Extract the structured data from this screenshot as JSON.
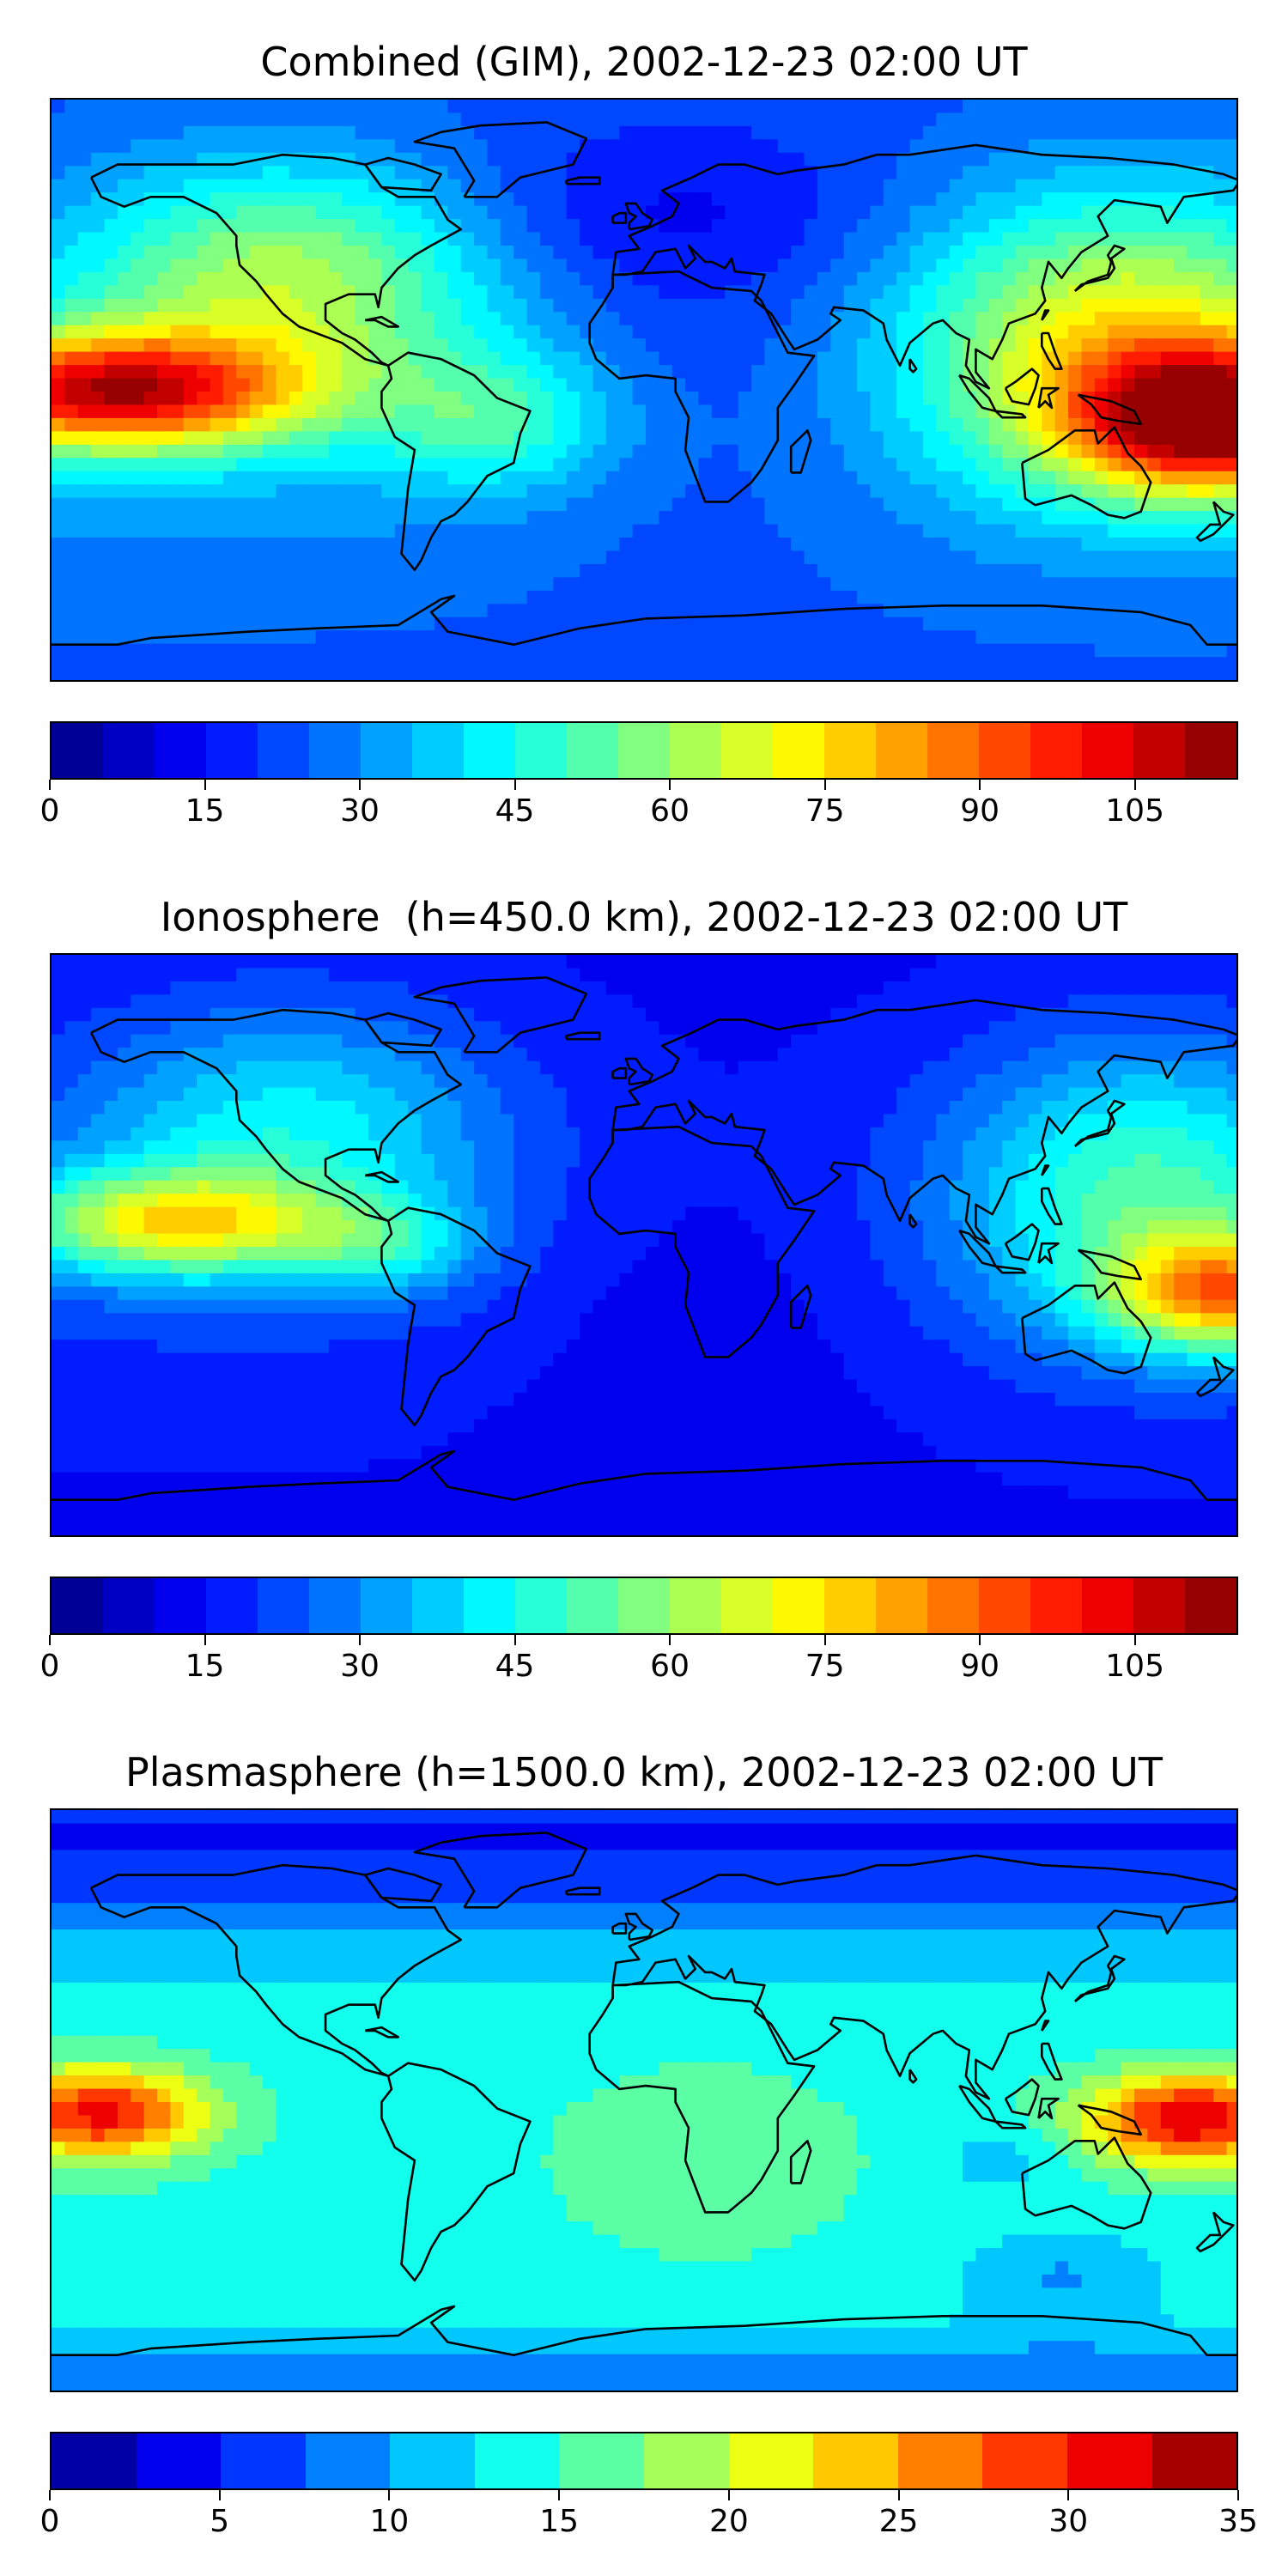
{
  "panels": [
    {
      "title": "Combined (GIM), 2002-12-23 02:00 UT",
      "colorbar": {
        "vmin": 0,
        "vmax": 115,
        "levels": 23,
        "tick_labels": [
          "0",
          "15",
          "30",
          "45",
          "60",
          "75",
          "90",
          "105"
        ],
        "tick_values": [
          0,
          15,
          30,
          45,
          60,
          75,
          90,
          105
        ]
      }
    },
    {
      "title": "Ionosphere  (h=450.0 km), 2002-12-23 02:00 UT",
      "colorbar": {
        "vmin": 0,
        "vmax": 115,
        "levels": 23,
        "tick_labels": [
          "0",
          "15",
          "30",
          "45",
          "60",
          "75",
          "90",
          "105"
        ],
        "tick_values": [
          0,
          15,
          30,
          45,
          60,
          75,
          90,
          105
        ]
      }
    },
    {
      "title": "Plasmasphere (h=1500.0 km), 2002-12-23 02:00 UT",
      "colorbar": {
        "vmin": 0,
        "vmax": 35,
        "levels": 14,
        "tick_labels": [
          "0",
          "5",
          "10",
          "15",
          "20",
          "25",
          "30",
          "35"
        ],
        "tick_values": [
          0,
          5,
          10,
          15,
          20,
          25,
          30,
          35
        ]
      }
    }
  ],
  "colors": {
    "colormap": [
      "#00008f",
      "#0000ff",
      "#0080ff",
      "#00ffff",
      "#80ff80",
      "#ffff00",
      "#ff8000",
      "#ff0000",
      "#800000"
    ],
    "coastline": "#000000"
  },
  "icons": {
    "map": "world-map-coastlines"
  }
}
